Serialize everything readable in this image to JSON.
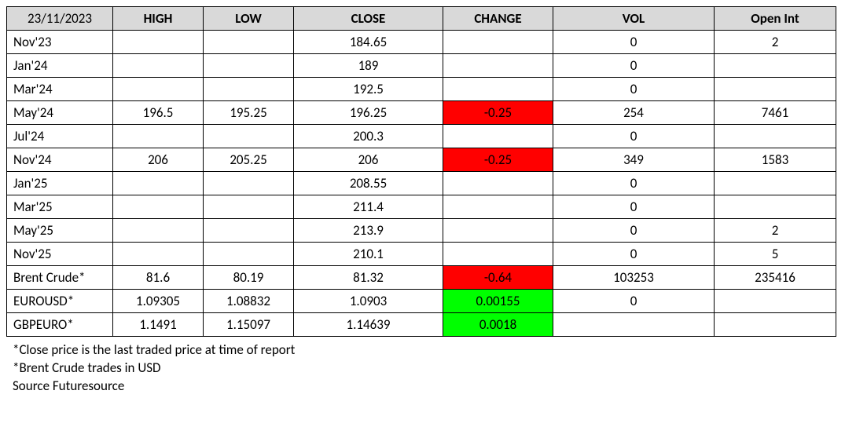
{
  "table": {
    "date_header": "23/11/2023",
    "columns": [
      "HIGH",
      "LOW",
      "CLOSE",
      "CHANGE",
      "VOL",
      "Open Int"
    ],
    "col_widths": [
      "135px",
      "115px",
      "115px",
      "190px",
      "140px",
      "205px",
      "155px"
    ],
    "header_bg": "#d9d9d9",
    "border_color": "#000000",
    "neg_bg": "#ff0000",
    "pos_bg": "#00ff00",
    "rows": [
      {
        "label": "Nov'23",
        "high": "",
        "low": "",
        "close": "184.65",
        "change": "",
        "change_dir": "",
        "vol": "0",
        "oi": "2"
      },
      {
        "label": "Jan'24",
        "high": "",
        "low": "",
        "close": "189",
        "change": "",
        "change_dir": "",
        "vol": "0",
        "oi": ""
      },
      {
        "label": "Mar'24",
        "high": "",
        "low": "",
        "close": "192.5",
        "change": "",
        "change_dir": "",
        "vol": "0",
        "oi": ""
      },
      {
        "label": "May'24",
        "high": "196.5",
        "low": "195.25",
        "close": "196.25",
        "change": "-0.25",
        "change_dir": "neg",
        "vol": "254",
        "oi": "7461"
      },
      {
        "label": "Jul'24",
        "high": "",
        "low": "",
        "close": "200.3",
        "change": "",
        "change_dir": "",
        "vol": "0",
        "oi": ""
      },
      {
        "label": "Nov'24",
        "high": "206",
        "low": "205.25",
        "close": "206",
        "change": "-0.25",
        "change_dir": "neg",
        "vol": "349",
        "oi": "1583"
      },
      {
        "label": "Jan'25",
        "high": "",
        "low": "",
        "close": "208.55",
        "change": "",
        "change_dir": "",
        "vol": "0",
        "oi": ""
      },
      {
        "label": "Mar'25",
        "high": "",
        "low": "",
        "close": "211.4",
        "change": "",
        "change_dir": "",
        "vol": "0",
        "oi": ""
      },
      {
        "label": "May'25",
        "high": "",
        "low": "",
        "close": "213.9",
        "change": "",
        "change_dir": "",
        "vol": "0",
        "oi": "2"
      },
      {
        "label": "Nov'25",
        "high": "",
        "low": "",
        "close": "210.1",
        "change": "",
        "change_dir": "",
        "vol": "0",
        "oi": "5"
      },
      {
        "label": "Brent Crude*",
        "high": "81.6",
        "low": "80.19",
        "close": "81.32",
        "change": "-0.64",
        "change_dir": "neg",
        "vol": "103253",
        "oi": "235416"
      },
      {
        "label": "EUROUSD*",
        "high": "1.09305",
        "low": "1.08832",
        "close": "1.0903",
        "change": "0.00155",
        "change_dir": "pos",
        "vol": "0",
        "oi": ""
      },
      {
        "label": "GBPEURO*",
        "high": "1.1491",
        "low": "1.15097",
        "close": "1.14639",
        "change": "0.0018",
        "change_dir": "pos",
        "vol": "",
        "oi": ""
      }
    ]
  },
  "footnotes": {
    "note1": "*Close price is the last traded price at time of report",
    "note2": "*Brent Crude trades in USD",
    "source": "Source Futuresource"
  }
}
